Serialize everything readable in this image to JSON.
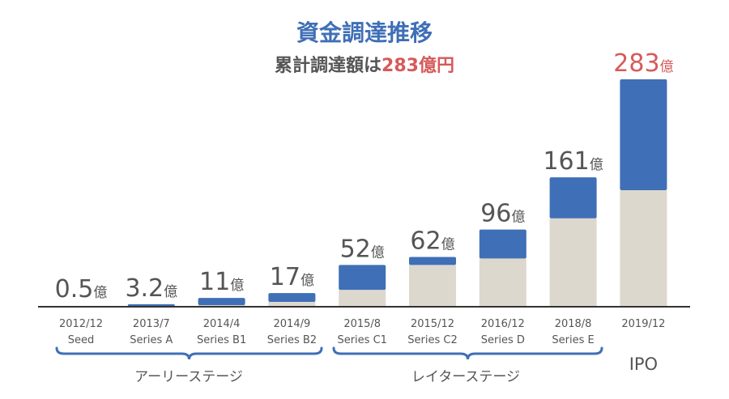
{
  "title": "資金調達推移",
  "subtitle": {
    "prefix": "累計調達額は",
    "highlight": "283億円"
  },
  "colors": {
    "title": "#3F6FB6",
    "blue": "#3F6FB6",
    "beige": "#DDD8CE",
    "red": "#D65A5A",
    "label": "#555555",
    "axis": "#333333"
  },
  "chart_data": {
    "type": "bar",
    "unit": "億",
    "categories": [
      {
        "date": "2012/12",
        "round": "Seed"
      },
      {
        "date": "2013/7",
        "round": "Series A"
      },
      {
        "date": "2014/4",
        "round": "Series B1"
      },
      {
        "date": "2014/9",
        "round": "Series B2"
      },
      {
        "date": "2015/8",
        "round": "Series C1"
      },
      {
        "date": "2015/12",
        "round": "Series C2"
      },
      {
        "date": "2016/12",
        "round": "Series D"
      },
      {
        "date": "2018/8",
        "round": "Series E"
      },
      {
        "date": "2019/12",
        "round": ""
      }
    ],
    "series": [
      {
        "values": [
          0,
          0,
          2,
          6,
          21,
          52,
          60,
          110,
          145
        ]
      },
      {
        "values": [
          0.5,
          3.2,
          9,
          11,
          31,
          10,
          36,
          51,
          138
        ]
      }
    ],
    "totals": [
      0.5,
      3.2,
      11,
      17,
      52,
      62,
      96,
      161,
      283
    ],
    "total_labels": [
      "0.5",
      "3.2",
      "11",
      "17",
      "52",
      "62",
      "96",
      "161",
      "283"
    ],
    "ylim": [
      0,
      283
    ]
  },
  "groups": [
    {
      "label": "アーリーステージ"
    },
    {
      "label": "レイターステージ"
    },
    {
      "label": "IPO"
    }
  ]
}
